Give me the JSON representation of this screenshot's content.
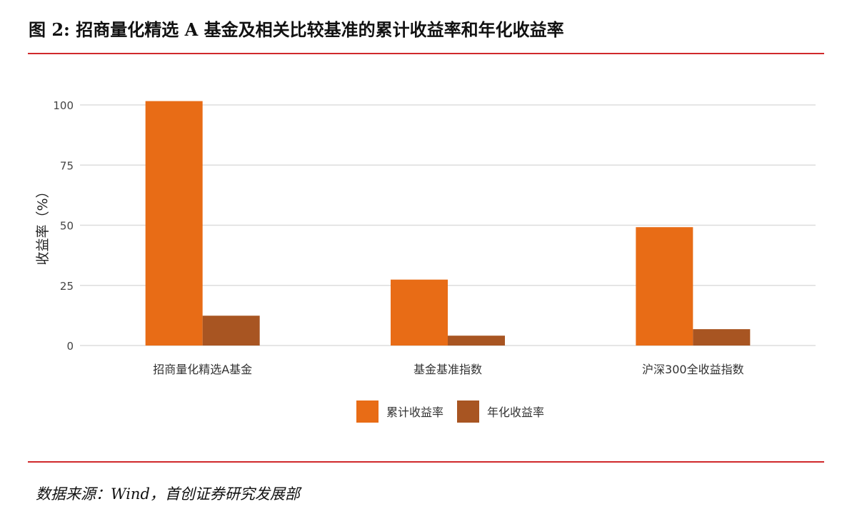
{
  "figure": {
    "title": "图 2: 招商量化精选 A 基金及相关比较基准的累计收益率和年化收益率",
    "source": "数据来源：Wind，首创证券研究发展部"
  },
  "colors": {
    "rule": "#d0292b",
    "grid": "#dddddd",
    "cumulative": "#e86c16",
    "annualized": "#a85522"
  },
  "chart_data": {
    "type": "bar",
    "title": "",
    "xlabel": "",
    "ylabel": "收益率（%）",
    "ylim": [
      0,
      100
    ],
    "yticks": [
      0,
      25,
      50,
      75,
      100
    ],
    "grid": true,
    "legend_position": "bottom-center",
    "categories": [
      "招商量化精选A基金",
      "基金基准指数",
      "沪深300全收益指数"
    ],
    "series": [
      {
        "name": "累计收益率",
        "color": "#e86c16",
        "values": [
          101.6,
          27.4,
          49.2
        ]
      },
      {
        "name": "年化收益率",
        "color": "#a85522",
        "values": [
          12.4,
          4.1,
          6.8
        ]
      }
    ]
  }
}
